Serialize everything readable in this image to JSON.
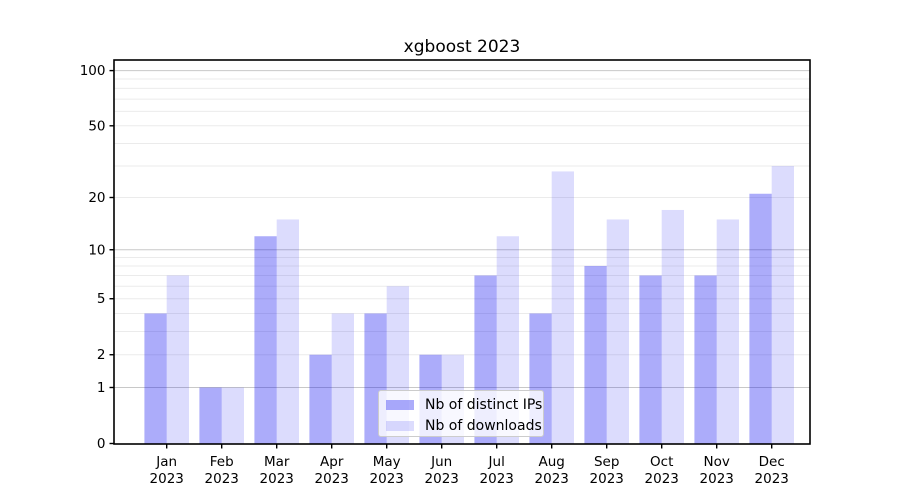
{
  "chart_data": {
    "type": "bar",
    "title": "xgboost 2023",
    "categories": [
      "Jan 2023",
      "Feb 2023",
      "Mar 2023",
      "Apr 2023",
      "May 2023",
      "Jun 2023",
      "Jul 2023",
      "Aug 2023",
      "Sep 2023",
      "Oct 2023",
      "Nov 2023",
      "Dec 2023"
    ],
    "month_labels": [
      "Jan",
      "Feb",
      "Mar",
      "Apr",
      "May",
      "Jun",
      "Jul",
      "Aug",
      "Sep",
      "Oct",
      "Nov",
      "Dec"
    ],
    "year_label": "2023",
    "series": [
      {
        "name": "Nb of distinct IPs",
        "color": "rgba(15,15,240,0.345)",
        "values": [
          4,
          1,
          12,
          2,
          4,
          2,
          7,
          4,
          8,
          7,
          7,
          21
        ]
      },
      {
        "name": "Nb of downloads",
        "color": "rgba(15,15,240,0.145)",
        "values": [
          7,
          1,
          15,
          4,
          6,
          2,
          12,
          28,
          15,
          17,
          15,
          30
        ]
      }
    ],
    "yscale": "log1p",
    "ylim": [
      0,
      114
    ],
    "ytick_labels": [
      "0",
      "1",
      "2",
      "5",
      "10",
      "20",
      "50",
      "100"
    ],
    "ytick_values": [
      0,
      1,
      2,
      5,
      10,
      20,
      50,
      100
    ],
    "grid": {
      "major_values": [
        1,
        10,
        100
      ],
      "minor_values": [
        2,
        3,
        4,
        5,
        6,
        7,
        8,
        9,
        20,
        30,
        40,
        50,
        60,
        70,
        80,
        90
      ],
      "major_color": "#c8c8c8",
      "minor_color": "#ebebeb"
    },
    "axis_color": "#000000",
    "legend_position": "lower center"
  }
}
